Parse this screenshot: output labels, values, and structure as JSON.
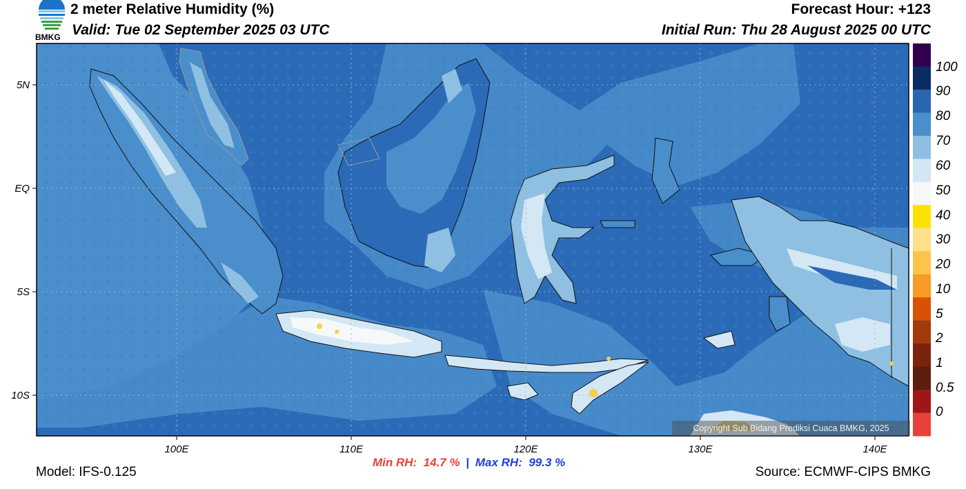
{
  "header": {
    "title": "2 meter Relative Humidity (%)",
    "valid": "Valid: Tue 02 September 2025 03 UTC",
    "forecast_hour": "Forecast Hour: +123",
    "initial_run": "Initial Run: Thu 28 August 2025 00 UTC",
    "logo_text": "BMKG"
  },
  "footer": {
    "model": "Model: IFS-0.125",
    "source": "Source: ECMWF-CIPS BMKG",
    "min_label": "Min RH:",
    "min_value": "14.7 %",
    "separator": "|",
    "max_label": "Max RH:",
    "max_value": "99.3 %"
  },
  "map": {
    "copyright": "Copyright Sub Bidang Prediksi Cuaca BMKG, 2025",
    "lat_ticks": [
      "5N",
      "EQ",
      "5S",
      "10S"
    ],
    "lon_ticks": [
      "100E",
      "110E",
      "120E",
      "130E",
      "140E"
    ],
    "colors": {
      "ocean_base": "#2a6ab7",
      "level_70_80": "#4a8ecb",
      "level_60_70": "#8fc0e2",
      "level_50_60": "#d3e7f4",
      "level_40_50": "#f6f8fa",
      "dry_spot": "#f7d23b",
      "coast_line": "#111111",
      "border_line": "#9a9a9a"
    }
  },
  "colorbar": {
    "labels": [
      "100",
      "90",
      "80",
      "70",
      "60",
      "50",
      "40",
      "30",
      "20",
      "10",
      "5",
      "2",
      "1",
      "0.5",
      "0"
    ],
    "colors": [
      "#34004b",
      "#0b2c63",
      "#2a65b2",
      "#4a8ecb",
      "#8ebfe2",
      "#d2e6f3",
      "#f6f7f9",
      "#fde200",
      "#fee08a",
      "#fdc44b",
      "#f99a27",
      "#d95204",
      "#a33a0a",
      "#7a2410",
      "#5c1e0e",
      "#a01616",
      "#e8413a"
    ]
  }
}
